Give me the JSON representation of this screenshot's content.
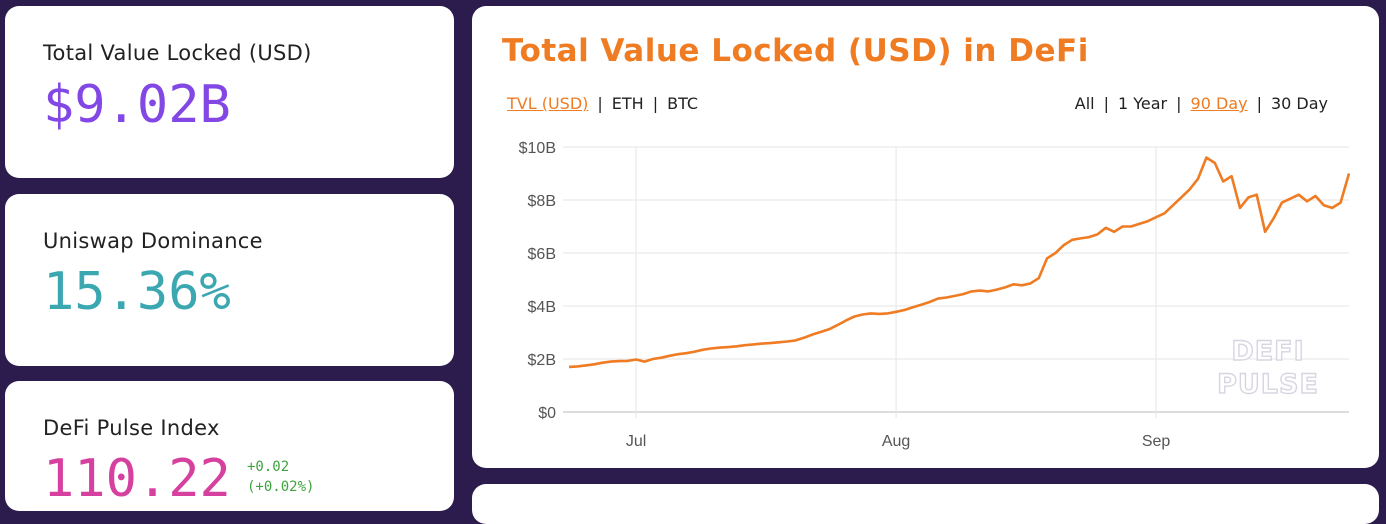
{
  "stats": {
    "tvl": {
      "label": "Total Value Locked (USD)",
      "value": "$9.02B"
    },
    "dominance": {
      "label": "Uniswap Dominance",
      "value": "15.36%"
    },
    "dpi": {
      "label": "DeFi Pulse Index",
      "value": "110.22",
      "change": "+0.02",
      "change_pct": "(+0.02%)"
    }
  },
  "chart_card": {
    "title": "Total Value Locked (USD) in DeFi",
    "unit_options": [
      {
        "label": "TVL (USD)",
        "active": true
      },
      {
        "label": "ETH",
        "active": false
      },
      {
        "label": "BTC",
        "active": false
      }
    ],
    "range_options": [
      {
        "label": "All",
        "active": false
      },
      {
        "label": "1 Year",
        "active": false
      },
      {
        "label": "90 Day",
        "active": true
      },
      {
        "label": "30 Day",
        "active": false
      }
    ],
    "watermark": [
      "DEFI",
      "PULSE"
    ]
  },
  "colors": {
    "background": "#2c1b4d",
    "accent": "#ef7b22",
    "tvl_value": "#8247e5",
    "dominance_value": "#3aa7b1",
    "dpi_value": "#d6409f",
    "positive": "#3fa33f"
  },
  "chart_data": {
    "type": "line",
    "title": "",
    "xlabel": "",
    "ylabel": "",
    "ylim": [
      0,
      10
    ],
    "y_unit": "USD billions",
    "y_ticks": [
      {
        "value": 0,
        "label": "$0"
      },
      {
        "value": 2,
        "label": "$2B"
      },
      {
        "value": 4,
        "label": "$4B"
      },
      {
        "value": 6,
        "label": "$6B"
      },
      {
        "value": 8,
        "label": "$8B"
      },
      {
        "value": 10,
        "label": "$10B"
      }
    ],
    "x_ticks": [
      {
        "day": 8,
        "label": "Jul"
      },
      {
        "day": 39,
        "label": "Aug"
      },
      {
        "day": 70,
        "label": "Sep"
      }
    ],
    "grid": true,
    "series": [
      {
        "color": "#ef7b22",
        "values": [
          1.7,
          1.72,
          1.76,
          1.8,
          1.86,
          1.9,
          1.92,
          1.93,
          1.98,
          1.9,
          2.0,
          2.05,
          2.12,
          2.18,
          2.22,
          2.28,
          2.35,
          2.4,
          2.43,
          2.45,
          2.48,
          2.52,
          2.55,
          2.58,
          2.6,
          2.63,
          2.66,
          2.7,
          2.8,
          2.92,
          3.02,
          3.12,
          3.28,
          3.45,
          3.6,
          3.68,
          3.72,
          3.7,
          3.72,
          3.78,
          3.85,
          3.95,
          4.05,
          4.15,
          4.28,
          4.32,
          4.38,
          4.45,
          4.55,
          4.58,
          4.55,
          4.62,
          4.7,
          4.82,
          4.78,
          4.85,
          5.05,
          5.8,
          6.0,
          6.3,
          6.5,
          6.55,
          6.6,
          6.7,
          6.95,
          6.8,
          7.0,
          7.0,
          7.1,
          7.2,
          7.35,
          7.5,
          7.8,
          8.1,
          8.4,
          8.8,
          9.6,
          9.4,
          8.7,
          8.9,
          7.7,
          8.1,
          8.2,
          6.8,
          7.3,
          7.9,
          8.05,
          8.2,
          7.95,
          8.15,
          7.8,
          7.7,
          7.9,
          9.0
        ]
      }
    ]
  }
}
